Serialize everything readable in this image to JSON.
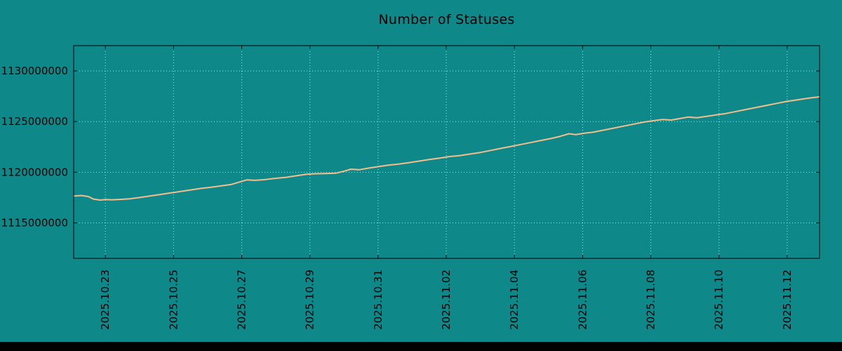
{
  "title": "Number of Statuses",
  "colors": {
    "background": "#0f888a",
    "line": "#f4bd8a",
    "grid": "#d9ecec",
    "border": "#000000",
    "text": "#000000",
    "footer_bar": "#000000"
  },
  "chart_data": {
    "type": "line",
    "title": "Number of Statuses",
    "xlabel": "",
    "ylabel": "",
    "x_unit": "days since 2025.10.23",
    "xlim": [
      -0.93,
      20.95
    ],
    "ylim": [
      1111500000,
      1132500000
    ],
    "grid": true,
    "legend": false,
    "x_ticks": [
      {
        "d": 0,
        "label": "2025.10.23"
      },
      {
        "d": 2,
        "label": "2025.10.25"
      },
      {
        "d": 4,
        "label": "2025.10.27"
      },
      {
        "d": 6,
        "label": "2025.10.29"
      },
      {
        "d": 8,
        "label": "2025.10.31"
      },
      {
        "d": 10,
        "label": "2025.11.02"
      },
      {
        "d": 12,
        "label": "2025.11.04"
      },
      {
        "d": 14,
        "label": "2025.11.06"
      },
      {
        "d": 16,
        "label": "2025.11.08"
      },
      {
        "d": 18,
        "label": "2025.11.10"
      },
      {
        "d": 20,
        "label": "2025.11.12"
      }
    ],
    "y_ticks": [
      {
        "v": 1115000000,
        "label": "1115000000"
      },
      {
        "v": 1120000000,
        "label": "1120000000"
      },
      {
        "v": 1125000000,
        "label": "1125000000"
      },
      {
        "v": 1130000000,
        "label": "1130000000"
      }
    ],
    "points": [
      [
        -0.93,
        1117650000
      ],
      [
        -0.7,
        1117700000
      ],
      [
        -0.5,
        1117600000
      ],
      [
        -0.35,
        1117350000
      ],
      [
        -0.15,
        1117250000
      ],
      [
        0.0,
        1117300000
      ],
      [
        0.2,
        1117280000
      ],
      [
        0.45,
        1117320000
      ],
      [
        0.7,
        1117380000
      ],
      [
        1.0,
        1117500000
      ],
      [
        1.3,
        1117650000
      ],
      [
        1.6,
        1117800000
      ],
      [
        1.9,
        1117950000
      ],
      [
        2.2,
        1118100000
      ],
      [
        2.5,
        1118250000
      ],
      [
        2.8,
        1118400000
      ],
      [
        3.1,
        1118520000
      ],
      [
        3.4,
        1118650000
      ],
      [
        3.7,
        1118800000
      ],
      [
        3.95,
        1119050000
      ],
      [
        4.15,
        1119250000
      ],
      [
        4.4,
        1119200000
      ],
      [
        4.7,
        1119280000
      ],
      [
        5.0,
        1119400000
      ],
      [
        5.3,
        1119500000
      ],
      [
        5.6,
        1119650000
      ],
      [
        5.9,
        1119800000
      ],
      [
        6.15,
        1119850000
      ],
      [
        6.45,
        1119870000
      ],
      [
        6.75,
        1119900000
      ],
      [
        7.0,
        1120100000
      ],
      [
        7.2,
        1120300000
      ],
      [
        7.45,
        1120250000
      ],
      [
        7.7,
        1120400000
      ],
      [
        8.0,
        1120550000
      ],
      [
        8.3,
        1120700000
      ],
      [
        8.6,
        1120800000
      ],
      [
        8.9,
        1120950000
      ],
      [
        9.2,
        1121100000
      ],
      [
        9.5,
        1121250000
      ],
      [
        9.8,
        1121400000
      ],
      [
        10.1,
        1121550000
      ],
      [
        10.4,
        1121650000
      ],
      [
        10.7,
        1121800000
      ],
      [
        11.0,
        1121950000
      ],
      [
        11.3,
        1122150000
      ],
      [
        11.6,
        1122350000
      ],
      [
        11.9,
        1122550000
      ],
      [
        12.2,
        1122750000
      ],
      [
        12.5,
        1122950000
      ],
      [
        12.8,
        1123150000
      ],
      [
        13.1,
        1123350000
      ],
      [
        13.35,
        1123550000
      ],
      [
        13.6,
        1123800000
      ],
      [
        13.8,
        1123720000
      ],
      [
        14.05,
        1123850000
      ],
      [
        14.3,
        1123950000
      ],
      [
        14.6,
        1124150000
      ],
      [
        14.9,
        1124350000
      ],
      [
        15.2,
        1124550000
      ],
      [
        15.5,
        1124750000
      ],
      [
        15.8,
        1124950000
      ],
      [
        16.1,
        1125100000
      ],
      [
        16.35,
        1125200000
      ],
      [
        16.6,
        1125150000
      ],
      [
        16.85,
        1125300000
      ],
      [
        17.1,
        1125450000
      ],
      [
        17.35,
        1125380000
      ],
      [
        17.6,
        1125500000
      ],
      [
        17.9,
        1125650000
      ],
      [
        18.2,
        1125800000
      ],
      [
        18.5,
        1126000000
      ],
      [
        18.8,
        1126200000
      ],
      [
        19.1,
        1126400000
      ],
      [
        19.4,
        1126600000
      ],
      [
        19.7,
        1126800000
      ],
      [
        20.0,
        1127000000
      ],
      [
        20.3,
        1127150000
      ],
      [
        20.6,
        1127300000
      ],
      [
        20.95,
        1127450000
      ]
    ]
  }
}
